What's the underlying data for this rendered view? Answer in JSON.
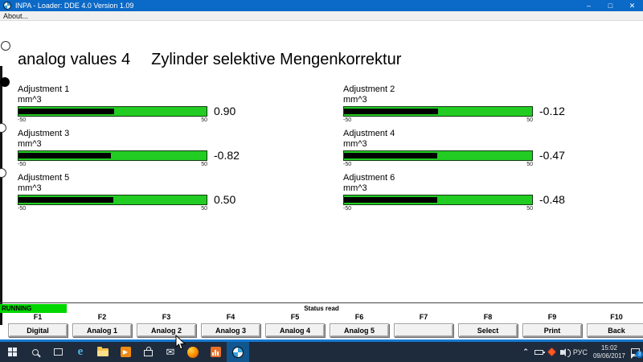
{
  "window": {
    "title": "INPA - Loader:  DDE 4.0 Version 1.09",
    "menu_about": "About...",
    "controls": {
      "minimize": "–",
      "maximize": "□",
      "close": "✕"
    }
  },
  "heading": {
    "left": "analog values 4",
    "right": "Zylinder selektive Mengenkorrektur"
  },
  "gauges": [
    {
      "label": "Adjustment 1",
      "unit": "mm^3",
      "value": 0.9,
      "value_text": "0.90",
      "min": -50,
      "max": 50,
      "min_label": "-50",
      "max_label": "50"
    },
    {
      "label": "Adjustment 2",
      "unit": "mm^3",
      "value": -0.12,
      "value_text": "-0.12",
      "min": -50,
      "max": 50,
      "min_label": "-50",
      "max_label": "50"
    },
    {
      "label": "Adjustment 3",
      "unit": "mm^3",
      "value": -0.82,
      "value_text": "-0.82",
      "min": -50,
      "max": 50,
      "min_label": "-50",
      "max_label": "50"
    },
    {
      "label": "Adjustment 4",
      "unit": "mm^3",
      "value": -0.47,
      "value_text": "-0.47",
      "min": -50,
      "max": 50,
      "min_label": "-50",
      "max_label": "50"
    },
    {
      "label": "Adjustment 5",
      "unit": "mm^3",
      "value": 0.5,
      "value_text": "0.50",
      "min": -50,
      "max": 50,
      "min_label": "-50",
      "max_label": "50"
    },
    {
      "label": "Adjustment 6",
      "unit": "mm^3",
      "value": -0.48,
      "value_text": "-0.48",
      "min": -50,
      "max": 50,
      "min_label": "-50",
      "max_label": "50"
    }
  ],
  "status": {
    "running": "RUNNING",
    "text": "Status read"
  },
  "function_keys": [
    {
      "key": "F1",
      "label": "Digital"
    },
    {
      "key": "F2",
      "label": "Analog 1"
    },
    {
      "key": "F3",
      "label": "Analog 2"
    },
    {
      "key": "F4",
      "label": "Analog 3"
    },
    {
      "key": "F5",
      "label": "Analog 4"
    },
    {
      "key": "F6",
      "label": "Analog 5"
    },
    {
      "key": "F7",
      "label": ""
    },
    {
      "key": "F8",
      "label": "Select"
    },
    {
      "key": "F9",
      "label": "Print"
    },
    {
      "key": "F10",
      "label": "Back"
    }
  ],
  "taskbar": {
    "tray": {
      "language": "РУС",
      "time": "15:02",
      "date": "09/06/2017",
      "notification_count": "3"
    }
  },
  "colors": {
    "titlebar_blue": "#0b69c7",
    "bar_green": "#22cc22",
    "running_green": "#00d600",
    "taskbar_dark": "#1e2b3c",
    "badge_blue": "#0078d7"
  }
}
